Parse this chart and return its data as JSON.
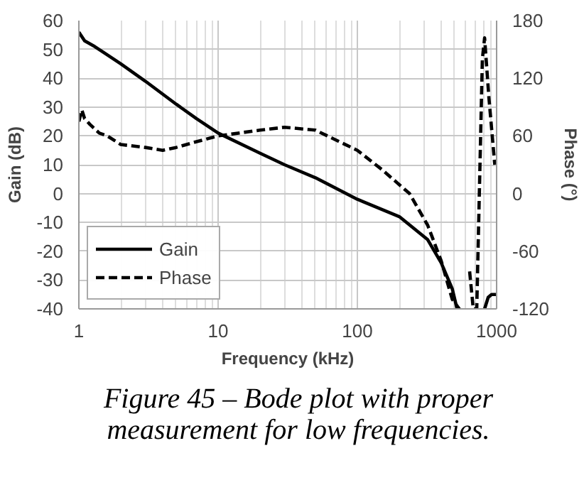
{
  "chart_data": {
    "type": "line",
    "xlabel": "Frequency (kHz)",
    "ylabel": "Gain (dB)",
    "y2label": "Phase (°)",
    "log": "x",
    "grid": true,
    "legend": "bottom left",
    "xlim": [
      1,
      1000
    ],
    "xticks": [
      1,
      10,
      100,
      1000
    ],
    "ylim": [
      -40,
      60
    ],
    "yticks": [
      -40,
      -30,
      -20,
      -10,
      0,
      10,
      20,
      30,
      40,
      50,
      60
    ],
    "y2lim": [
      -120,
      180
    ],
    "y2ticks": [
      -120,
      -60,
      0,
      60,
      120,
      180
    ],
    "series": [
      {
        "name": "Gain",
        "color": "#000000",
        "line_style": "solid",
        "x": [
          1,
          1.1,
          1.3,
          1.5,
          2,
          3,
          5,
          7,
          10,
          20,
          30,
          50,
          100,
          200,
          320,
          400,
          480,
          520,
          700,
          820,
          870,
          920,
          1000
        ],
        "values": [
          56,
          53,
          51,
          49,
          45,
          39,
          31,
          26,
          21,
          14,
          10,
          5.5,
          -2,
          -8,
          -16,
          -24,
          -33,
          -40,
          null,
          -40,
          -36,
          -35,
          -35
        ]
      },
      {
        "name": "Phase",
        "color": "#000000",
        "line_style": "dashed",
        "axis": "y2",
        "x": [
          1,
          1.05,
          1.1,
          1.2,
          1.4,
          1.6,
          2,
          3,
          4,
          5,
          7,
          10,
          20,
          30,
          50,
          100,
          150,
          237,
          320,
          400,
          480,
          540,
          600,
          640,
          680,
          720,
          790,
          820,
          880,
          970
        ],
        "values": [
          75,
          87,
          78,
          72,
          63,
          60,
          51,
          48,
          45,
          48,
          54,
          60,
          66,
          69,
          66,
          45,
          25,
          0,
          -33,
          -70,
          -110,
          -120,
          null,
          -81,
          -120,
          -120,
          140,
          162,
          100,
          30
        ]
      }
    ],
    "annotations": [
      "Figure 45 – Bode plot with proper measurement for low frequencies."
    ]
  }
}
